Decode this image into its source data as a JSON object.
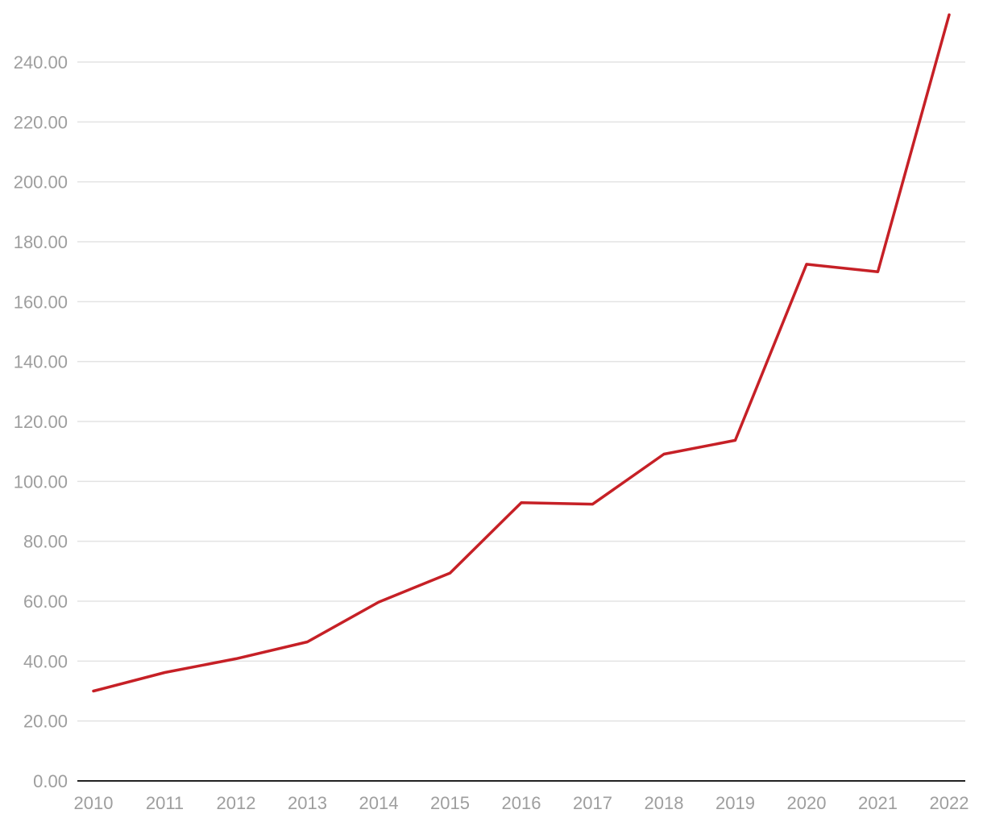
{
  "chart_data": {
    "type": "line",
    "title": "",
    "xlabel": "",
    "ylabel": "",
    "x": [
      "2010",
      "2011",
      "2012",
      "2013",
      "2014",
      "2015",
      "2016",
      "2017",
      "2018",
      "2019",
      "2020",
      "2021",
      "2022"
    ],
    "series": [
      {
        "values": [
          30.0,
          36.2,
          40.8,
          46.4,
          59.7,
          69.4,
          92.9,
          92.4,
          109.1,
          113.7,
          172.5,
          170.0,
          255.8
        ],
        "color": "#c62026"
      }
    ],
    "ylim": [
      0,
      240
    ],
    "yticks": [
      0,
      20,
      40,
      60,
      80,
      100,
      120,
      140,
      160,
      180,
      200,
      220,
      240
    ],
    "ytick_format": "2 decimals",
    "grid": true,
    "legend": "none"
  },
  "colors": {
    "series": "#c62026",
    "grid": "#e3e3e3",
    "axis": "#222222",
    "tick_text": "#9e9e9e"
  }
}
